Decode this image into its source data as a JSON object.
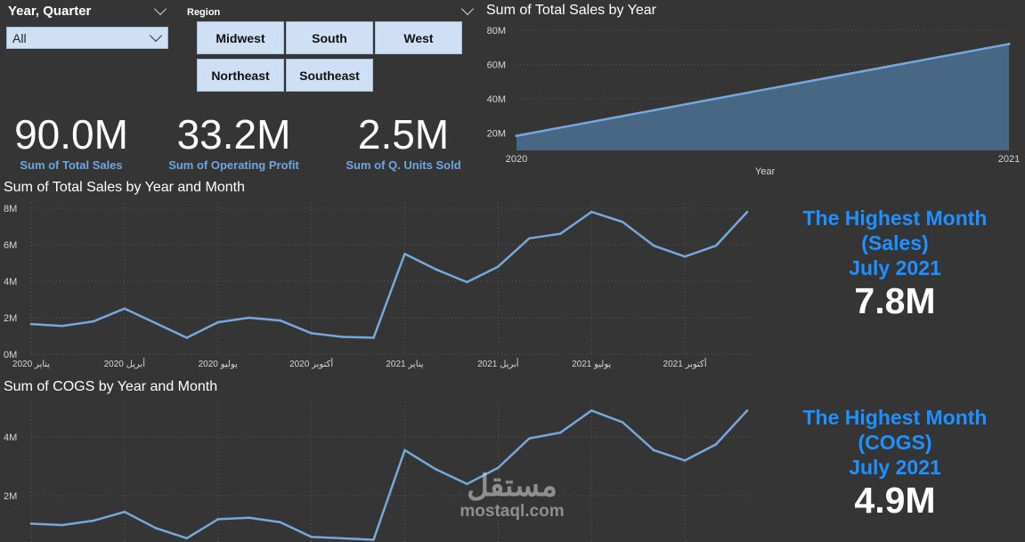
{
  "slicers": {
    "year_quarter": {
      "title": "Year, Quarter",
      "selected": "All"
    },
    "region": {
      "title": "Region",
      "buttons": [
        "Midwest",
        "South",
        "West",
        "Northeast",
        "Southeast"
      ]
    }
  },
  "kpis": [
    {
      "value": "90.0M",
      "label": "Sum of Total Sales"
    },
    {
      "value": "33.2M",
      "label": "Sum of Operating Profit"
    },
    {
      "value": "2.5M",
      "label": "Sum of Q. Units Sold"
    }
  ],
  "highlights": {
    "sales": {
      "line1": "The Highest Month",
      "line2": "(Sales)",
      "line3": "July 2021",
      "value": "7.8M"
    },
    "cogs": {
      "line1": "The Highest Month",
      "line2": "(COGS)",
      "line3": "July 2021",
      "value": "4.9M"
    }
  },
  "watermark": {
    "arabic": "مستقل",
    "latin": "mostaql.com"
  },
  "colors": {
    "background": "#353535",
    "line": "#76a8dc",
    "area_fill": "#4a6a8a",
    "accent": "#1e90ff",
    "kpi_label": "#6ea6e0",
    "button": "#cfe0f4"
  },
  "chart_data": [
    {
      "id": "sales_by_year",
      "type": "area",
      "title": "Sum of Total Sales by Year",
      "xlabel": "Year",
      "ylabel": "",
      "x": [
        "2020",
        "2021"
      ],
      "values": [
        18.5,
        72
      ],
      "ylim": [
        10,
        80
      ],
      "y_ticks": [
        20,
        40,
        60,
        80
      ],
      "y_tick_labels": [
        "20M",
        "40M",
        "60M",
        "80M"
      ],
      "grid": true
    },
    {
      "id": "sales_by_month",
      "type": "line",
      "title": "Sum of Total Sales by Year and Month",
      "xlabel": "",
      "ylabel": "",
      "x": [
        "Jan 2020",
        "Feb 2020",
        "Mar 2020",
        "Apr 2020",
        "May 2020",
        "Jun 2020",
        "Jul 2020",
        "Aug 2020",
        "Sep 2020",
        "Oct 2020",
        "Nov 2020",
        "Dec 2020",
        "Jan 2021",
        "Feb 2021",
        "Mar 2021",
        "Apr 2021",
        "May 2021",
        "Jun 2021",
        "Jul 2021",
        "Aug 2021",
        "Sep 2021",
        "Oct 2021",
        "Nov 2021",
        "Dec 2021"
      ],
      "x_tick_labels": [
        "يناير 2020",
        "أبريل 2020",
        "يوليو 2020",
        "أكتوبر 2020",
        "يناير 2021",
        "أبريل 2021",
        "يوليو 2021",
        "أكتوبر 2021"
      ],
      "values": [
        1.65,
        1.55,
        1.8,
        2.5,
        1.7,
        0.9,
        1.75,
        2.0,
        1.85,
        1.15,
        0.95,
        0.9,
        5.5,
        4.65,
        3.95,
        4.8,
        6.35,
        6.6,
        7.8,
        7.25,
        5.95,
        5.35,
        5.95,
        7.8
      ],
      "ylim": [
        0,
        8
      ],
      "y_ticks": [
        0,
        2,
        4,
        6,
        8
      ],
      "y_tick_labels": [
        "0M",
        "2M",
        "4M",
        "6M",
        "8M"
      ],
      "grid": true
    },
    {
      "id": "cogs_by_month",
      "type": "line",
      "title": "Sum of COGS by Year and Month",
      "xlabel": "",
      "ylabel": "",
      "x": [
        "Jan 2020",
        "Feb 2020",
        "Mar 2020",
        "Apr 2020",
        "May 2020",
        "Jun 2020",
        "Jul 2020",
        "Aug 2020",
        "Sep 2020",
        "Oct 2020",
        "Nov 2020",
        "Dec 2020",
        "Jan 2021",
        "Feb 2021",
        "Mar 2021",
        "Apr 2021",
        "May 2021",
        "Jun 2021",
        "Jul 2021",
        "Aug 2021",
        "Sep 2021",
        "Oct 2021",
        "Nov 2021",
        "Dec 2021"
      ],
      "values": [
        1.05,
        1.0,
        1.15,
        1.45,
        0.9,
        0.55,
        1.2,
        1.25,
        1.1,
        0.6,
        0.55,
        0.5,
        3.55,
        2.9,
        2.4,
        2.95,
        3.95,
        4.15,
        4.9,
        4.5,
        3.55,
        3.2,
        3.75,
        4.9
      ],
      "ylim": [
        0,
        5
      ],
      "y_ticks": [
        2,
        4
      ],
      "y_tick_labels": [
        "2M",
        "4M"
      ],
      "grid": true
    }
  ]
}
